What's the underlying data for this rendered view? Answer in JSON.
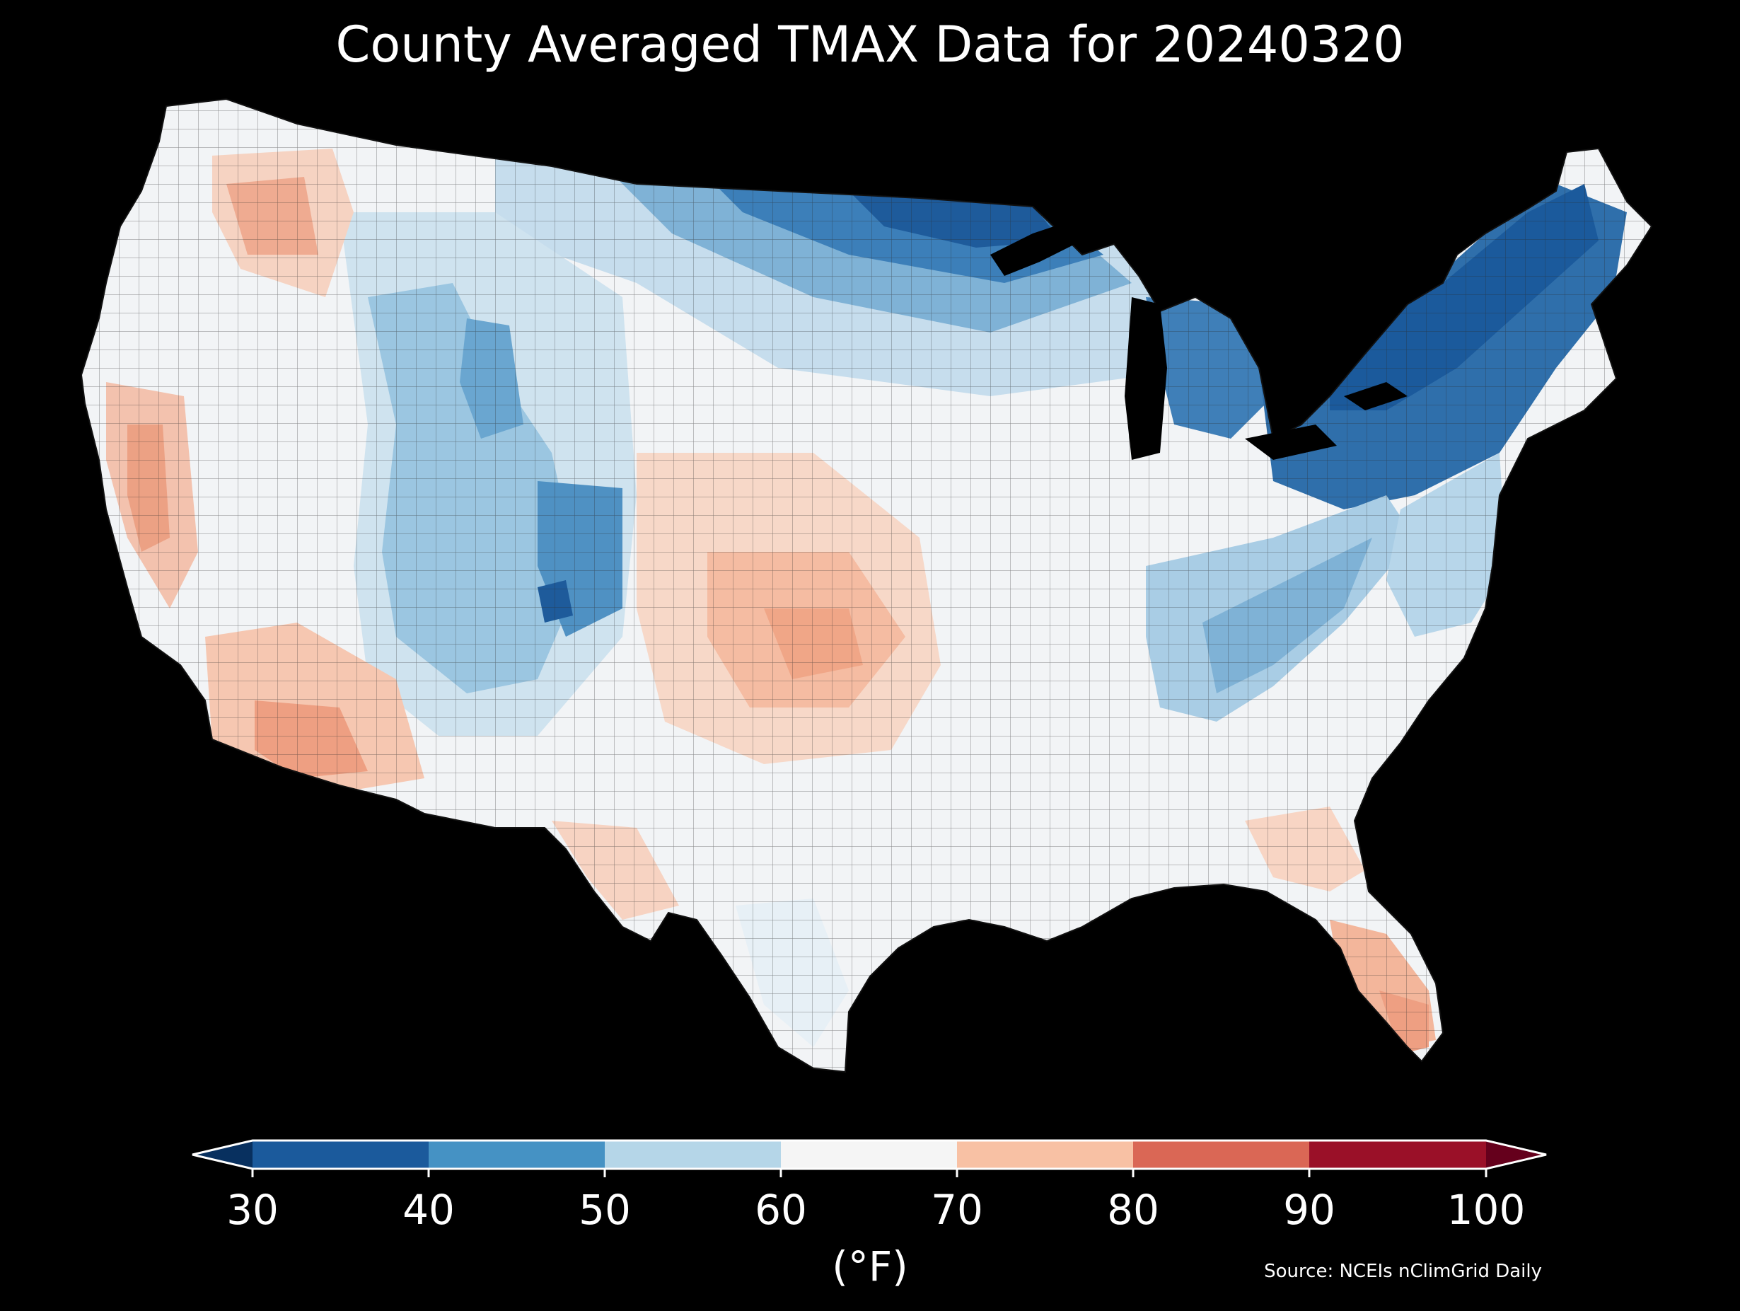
{
  "title": "County Averaged TMAX Data for 20240320",
  "colorbar": {
    "ticks": [
      "30",
      "40",
      "50",
      "60",
      "70",
      "80",
      "90",
      "100"
    ],
    "unit": "(°F)",
    "bins": [
      {
        "from": 30,
        "to": 40,
        "color": "#1b5a9c"
      },
      {
        "from": 40,
        "to": 50,
        "color": "#4592c4"
      },
      {
        "from": 50,
        "to": 60,
        "color": "#b5d6e8"
      },
      {
        "from": 60,
        "to": 70,
        "color": "#f5f5f5"
      },
      {
        "from": 70,
        "to": 80,
        "color": "#f8c1a4"
      },
      {
        "from": 80,
        "to": 90,
        "color": "#da6755"
      },
      {
        "from": 90,
        "to": 100,
        "color": "#9a1028"
      }
    ],
    "under_color": "#08305f",
    "over_color": "#65001c"
  },
  "source": "Source: NCEIs nClimGrid Daily"
}
